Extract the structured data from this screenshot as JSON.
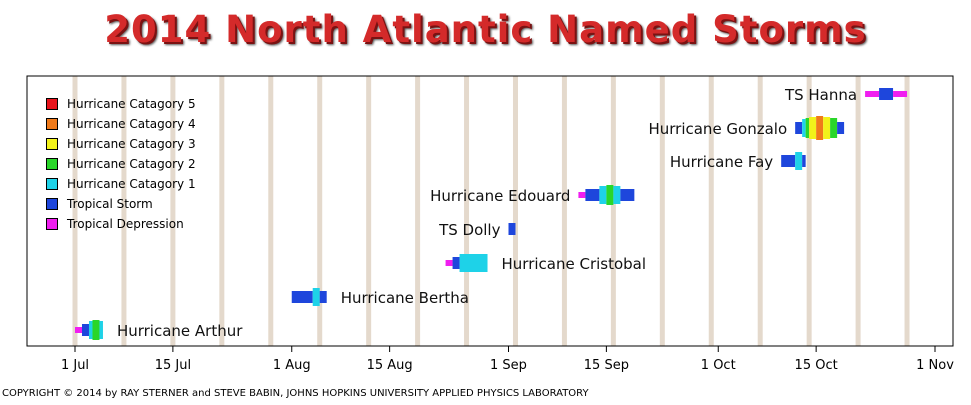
{
  "chart_data": {
    "type": "timeline",
    "title": "2014 North Atlantic Named Storms",
    "x_ticks": [
      {
        "label": "1 Jul",
        "date": "2014-07-01"
      },
      {
        "label": "15 Jul",
        "date": "2014-07-15"
      },
      {
        "label": "1 Aug",
        "date": "2014-08-01"
      },
      {
        "label": "15 Aug",
        "date": "2014-08-15"
      },
      {
        "label": "1 Sep",
        "date": "2014-09-01"
      },
      {
        "label": "15 Sep",
        "date": "2014-09-15"
      },
      {
        "label": "1 Oct",
        "date": "2014-10-01"
      },
      {
        "label": "15 Oct",
        "date": "2014-10-15"
      },
      {
        "label": "1 Nov",
        "date": "2014-11-01"
      }
    ],
    "xlim": [
      "2014-06-25",
      "2014-11-02"
    ],
    "legend": [
      {
        "label": "Hurricane Catagory 5",
        "color": "#e8141c"
      },
      {
        "label": "Hurricane Catagory 4",
        "color": "#f07a1a"
      },
      {
        "label": "Hurricane Catagory 3",
        "color": "#f2f21a"
      },
      {
        "label": "Hurricane Catagory 2",
        "color": "#2ad62a"
      },
      {
        "label": "Hurricane Catagory 1",
        "color": "#1ed2e8"
      },
      {
        "label": "Tropical Storm",
        "color": "#1e46dc"
      },
      {
        "label": "Tropical Depression",
        "color": "#f01ef0"
      }
    ],
    "legend_position": "top-left",
    "storms": [
      {
        "name": "Hurricane Arthur",
        "label_side": "right",
        "segments": [
          [
            "2014-07-01",
            "2014-07-02",
            "TD"
          ],
          [
            "2014-07-02",
            "2014-07-03",
            "TS"
          ],
          [
            "2014-07-03",
            "2014-07-03.5",
            "H1"
          ],
          [
            "2014-07-03.5",
            "2014-07-04.5",
            "H2"
          ],
          [
            "2014-07-04.5",
            "2014-07-05",
            "H1"
          ]
        ]
      },
      {
        "name": "Hurricane Bertha",
        "label_side": "right",
        "segments": [
          [
            "2014-08-01",
            "2014-08-04",
            "TS"
          ],
          [
            "2014-08-04",
            "2014-08-05",
            "H1"
          ],
          [
            "2014-08-05",
            "2014-08-06",
            "TS"
          ]
        ]
      },
      {
        "name": "Hurricane Cristobal",
        "label_side": "right",
        "segments": [
          [
            "2014-08-23",
            "2014-08-24",
            "TD"
          ],
          [
            "2014-08-24",
            "2014-08-25",
            "TS"
          ],
          [
            "2014-08-25",
            "2014-08-29",
            "H1"
          ]
        ]
      },
      {
        "name": "TS Dolly",
        "label_side": "left",
        "segments": [
          [
            "2014-09-01",
            "2014-09-02",
            "TS"
          ]
        ]
      },
      {
        "name": "Hurricane Edouard",
        "label_side": "left",
        "segments": [
          [
            "2014-09-11",
            "2014-09-12",
            "TD"
          ],
          [
            "2014-09-12",
            "2014-09-14",
            "TS"
          ],
          [
            "2014-09-14",
            "2014-09-15",
            "H1"
          ],
          [
            "2014-09-15",
            "2014-09-16",
            "H2"
          ],
          [
            "2014-09-16",
            "2014-09-17",
            "H1"
          ],
          [
            "2014-09-17",
            "2014-09-19",
            "TS"
          ]
        ]
      },
      {
        "name": "Hurricane Fay",
        "label_side": "left",
        "segments": [
          [
            "2014-10-10",
            "2014-10-12",
            "TS"
          ],
          [
            "2014-10-12",
            "2014-10-13",
            "H1"
          ],
          [
            "2014-10-13",
            "2014-10-13.5",
            "TS"
          ]
        ]
      },
      {
        "name": "Hurricane Gonzalo",
        "label_side": "left",
        "segments": [
          [
            "2014-10-12",
            "2014-10-13",
            "TS"
          ],
          [
            "2014-10-13",
            "2014-10-13.5",
            "H1"
          ],
          [
            "2014-10-13.5",
            "2014-10-14",
            "H2"
          ],
          [
            "2014-10-14",
            "2014-10-15",
            "H3"
          ],
          [
            "2014-10-15",
            "2014-10-16",
            "H4"
          ],
          [
            "2014-10-16",
            "2014-10-17",
            "H3"
          ],
          [
            "2014-10-17",
            "2014-10-18",
            "H2"
          ],
          [
            "2014-10-18",
            "2014-10-19",
            "TS"
          ]
        ]
      },
      {
        "name": "TS Hanna",
        "label_side": "left",
        "segments": [
          [
            "2014-10-22",
            "2014-10-24",
            "TD"
          ],
          [
            "2014-10-24",
            "2014-10-26",
            "TS"
          ],
          [
            "2014-10-26",
            "2014-10-28",
            "TD"
          ]
        ]
      }
    ],
    "intensity_colors": {
      "TD": "#f01ef0",
      "TS": "#1e46dc",
      "H1": "#1ed2e8",
      "H2": "#2ad62a",
      "H3": "#f2f21a",
      "H4": "#f07a1a",
      "H5": "#e8141c"
    },
    "intensity_heights": {
      "TD": 3,
      "TS": 6,
      "H1": 9,
      "H2": 10,
      "H3": 11,
      "H4": 12,
      "H5": 13
    },
    "grid": true
  },
  "footer": {
    "copyright": "COPYRIGHT © 2014 by RAY STERNER and STEVE BABIN, JOHNS HOPKINS UNIVERSITY APPLIED PHYSICS LABORATORY"
  },
  "colors": {
    "title": "#d42a2a",
    "background": "#ffffff",
    "grid_band": "#e4d9cc"
  }
}
